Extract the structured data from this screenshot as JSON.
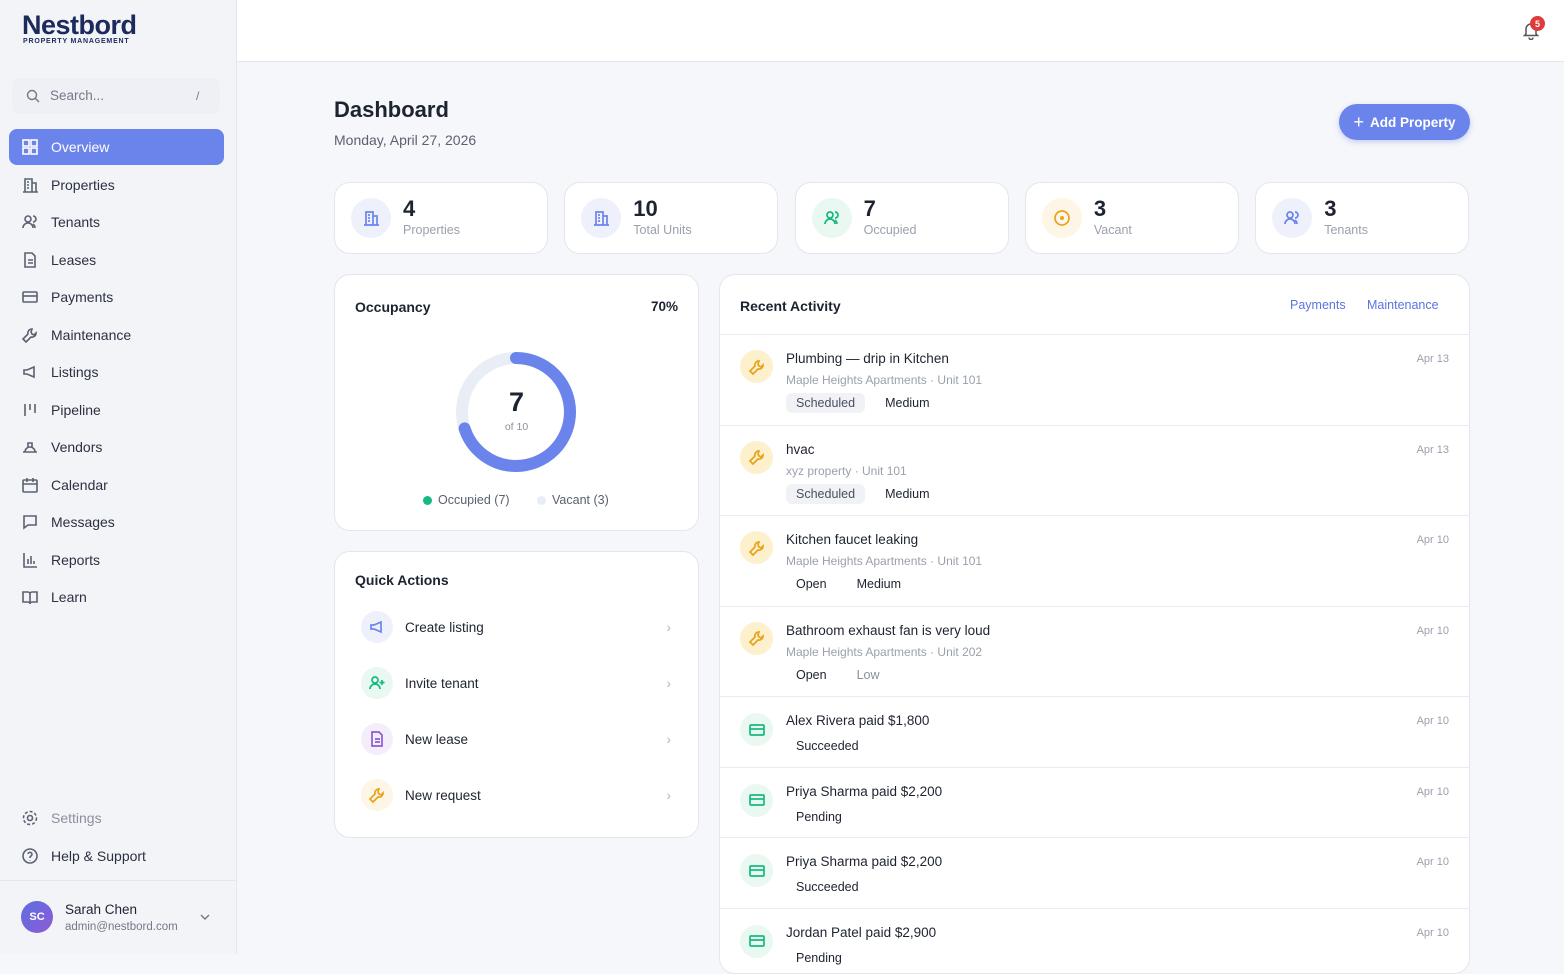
{
  "brand": {
    "name": "Nestbord",
    "tagline": "PROPERTY MANAGEMENT"
  },
  "search": {
    "placeholder": "Search...",
    "shortcut": "/"
  },
  "nav": [
    "Overview",
    "Properties",
    "Tenants",
    "Leases",
    "Payments",
    "Maintenance",
    "Listings",
    "Pipeline",
    "Vendors",
    "Calendar",
    "Messages",
    "Reports",
    "Learn"
  ],
  "nav_bottom": [
    "Settings",
    "Help & Support"
  ],
  "user": {
    "initials": "SC",
    "name": "Sarah Chen",
    "email": "admin@nestbord.com"
  },
  "notifications": 5,
  "header": {
    "title": "Dashboard",
    "date": "Monday, April 27, 2026",
    "action": "Add Property"
  },
  "stats": [
    {
      "value": 4,
      "label": "Properties"
    },
    {
      "value": 10,
      "label": "Total Units"
    },
    {
      "value": 7,
      "label": "Occupied"
    },
    {
      "value": 3,
      "label": "Vacant"
    },
    {
      "value": 3,
      "label": "Tenants"
    }
  ],
  "occupancy": {
    "title": "Occupancy",
    "percent": {
      "value": 70,
      "label": "70%"
    },
    "center": 7,
    "center_sub": "of 10",
    "legend": [
      "Occupied (7)",
      "Vacant (3)"
    ]
  },
  "quick_actions": {
    "title": "Quick Actions",
    "items": [
      "Create listing",
      "Invite tenant",
      "New lease",
      "New request"
    ]
  },
  "activity": {
    "title": "Recent Activity",
    "tabs": [
      "Payments",
      "Maintenance"
    ],
    "items": [
      {
        "title": "Plumbing — drip in Kitchen",
        "subtitle": "Maple Heights Apartments · Unit 101",
        "tags": [
          "Scheduled",
          "Medium"
        ],
        "date": "Apr 13"
      },
      {
        "title": "hvac",
        "subtitle": "xyz property · Unit 101",
        "tags": [
          "Scheduled",
          "Medium"
        ],
        "date": "Apr 13"
      },
      {
        "title": "Kitchen faucet leaking",
        "subtitle": "Maple Heights Apartments · Unit 101",
        "tags": [
          "Open",
          "Medium"
        ],
        "date": "Apr 10"
      },
      {
        "title": "Bathroom exhaust fan is very loud",
        "subtitle": "Maple Heights Apartments · Unit 202",
        "tags": [
          "Open",
          "Low"
        ],
        "date": "Apr 10"
      },
      {
        "title": "Alex Rivera paid $1,800",
        "tags": [
          "Succeeded"
        ],
        "date": "Apr 10"
      },
      {
        "title": "Priya Sharma paid $2,200",
        "tags": [
          "Pending"
        ],
        "date": "Apr 10"
      },
      {
        "title": "Priya Sharma paid $2,200",
        "tags": [
          "Succeeded"
        ],
        "date": "Apr 10"
      },
      {
        "title": "Jordan Patel paid $2,900",
        "tags": [
          "Pending"
        ],
        "date": "Apr 10"
      }
    ]
  }
}
